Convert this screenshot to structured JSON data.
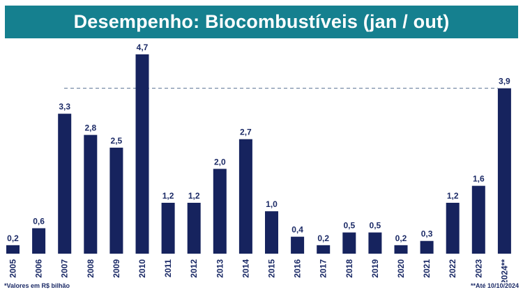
{
  "header": {
    "title": "Desempenho: Biocombustíveis (jan / out)"
  },
  "colors": {
    "banner": "#15808f",
    "bar": "#16235e",
    "text": "#1b2a66",
    "reference_line": "#5a7292"
  },
  "chart_data": {
    "type": "bar",
    "title": "Desempenho: Biocombustíveis (jan / out)",
    "xlabel": "",
    "ylabel": "",
    "categories": [
      "2005",
      "2006",
      "2007",
      "2008",
      "2009",
      "2010",
      "2011",
      "2012",
      "2013",
      "2014",
      "2015",
      "2016",
      "2017",
      "2018",
      "2019",
      "2020",
      "2021",
      "2022",
      "2023",
      "2024"
    ],
    "values": [
      0.2,
      0.6,
      3.3,
      2.8,
      2.5,
      4.7,
      1.2,
      1.2,
      2.0,
      2.7,
      1.0,
      0.4,
      0.2,
      0.5,
      0.5,
      0.2,
      0.3,
      1.2,
      1.6,
      3.9
    ],
    "value_labels": [
      "0,2",
      "0,6",
      "3,3",
      "2,8",
      "2,5",
      "4,7",
      "1,2",
      "1,2",
      "2,0",
      "2,7",
      "1,0",
      "0,4",
      "0,2",
      "0,5",
      "0,5",
      "0,2",
      "0,3",
      "1,2",
      "1,6",
      "3,9"
    ],
    "last_category_marker": "**",
    "reference_line": {
      "value": 3.9,
      "style": "dashed"
    },
    "ylim": [
      0,
      4.7
    ],
    "grid": false,
    "legend": "none"
  },
  "footnotes": {
    "left": "*Valores em R$ bilhão",
    "right": "**Até 10/10/2024"
  }
}
